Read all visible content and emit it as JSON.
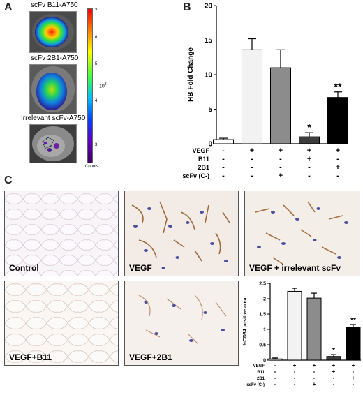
{
  "panel_a": {
    "letter": "A",
    "scans": [
      {
        "title": "scFv B11-A750"
      },
      {
        "title": "scFv 2B1-A750"
      },
      {
        "title": "Irrelevant scFv-A750"
      }
    ],
    "colorbar": {
      "ticks": [
        "7",
        "6",
        "5",
        "4",
        "3"
      ],
      "exponent": "10",
      "exponent_power": "3",
      "label": "Counts"
    }
  },
  "chart_data": [
    {
      "type": "bar",
      "panel": "B",
      "ylabel": "HB Fold Change",
      "ylim": [
        0,
        20
      ],
      "yticks": [
        "0",
        "5",
        "10",
        "15",
        "20"
      ],
      "categories": [
        "Control",
        "VEGF",
        "VEGF+scFv(C-)",
        "VEGF+B11",
        "VEGF+2B1"
      ],
      "values": [
        0.6,
        13.6,
        11.0,
        1.0,
        6.7
      ],
      "errors": [
        0.2,
        1.6,
        2.6,
        0.6,
        0.8
      ],
      "bar_colors": [
        "#ffffff",
        "#f2f2f2",
        "#8c8c8c",
        "#3c3c3c",
        "#000000"
      ],
      "significance": [
        "",
        "",
        "",
        "*",
        "**"
      ],
      "condition_rows": [
        {
          "label": "VEGF",
          "marks": [
            "-",
            "+",
            "+",
            "+",
            "+"
          ]
        },
        {
          "label": "B11",
          "marks": [
            "-",
            "-",
            "-",
            "+",
            "-"
          ]
        },
        {
          "label": "2B1",
          "marks": [
            "-",
            "-",
            "-",
            "-",
            "+"
          ]
        },
        {
          "label": "scFv (C-)",
          "marks": [
            "-",
            "-",
            "+",
            "-",
            "-"
          ]
        }
      ]
    },
    {
      "type": "bar",
      "panel": "C",
      "ylabel": "%CD34 positive area",
      "ylim": [
        0,
        2.5
      ],
      "yticks": [
        "0",
        "0.5",
        "1",
        "1.5",
        "2",
        "2.5"
      ],
      "categories": [
        "Control",
        "VEGF",
        "VEGF+scFv(C-)",
        "VEGF+B11",
        "VEGF+2B1"
      ],
      "values": [
        0.04,
        2.24,
        2.02,
        0.12,
        1.08
      ],
      "errors": [
        0.03,
        0.1,
        0.16,
        0.06,
        0.08
      ],
      "bar_colors": [
        "#ffffff",
        "#f2f2f2",
        "#8c8c8c",
        "#3c3c3c",
        "#000000"
      ],
      "significance": [
        "",
        "",
        "",
        "*",
        "**"
      ],
      "condition_rows": [
        {
          "label": "VEGF",
          "marks": [
            "-",
            "+",
            "+",
            "+",
            "+"
          ]
        },
        {
          "label": "B11",
          "marks": [
            "-",
            "-",
            "-",
            "+",
            "-"
          ]
        },
        {
          "label": "2B1",
          "marks": [
            "-",
            "-",
            "-",
            "-",
            "+"
          ]
        },
        {
          "label": "scFv (C-)",
          "marks": [
            "-",
            "-",
            "+",
            "-",
            "-"
          ]
        }
      ]
    }
  ],
  "panel_b": {
    "letter": "B"
  },
  "panel_c": {
    "letter": "C",
    "images": [
      {
        "label": "Control"
      },
      {
        "label": "VEGF"
      },
      {
        "label": "VEGF + irrelevant scFv"
      },
      {
        "label": "VEGF+B11"
      },
      {
        "label": "VEGF+2B1"
      }
    ]
  }
}
